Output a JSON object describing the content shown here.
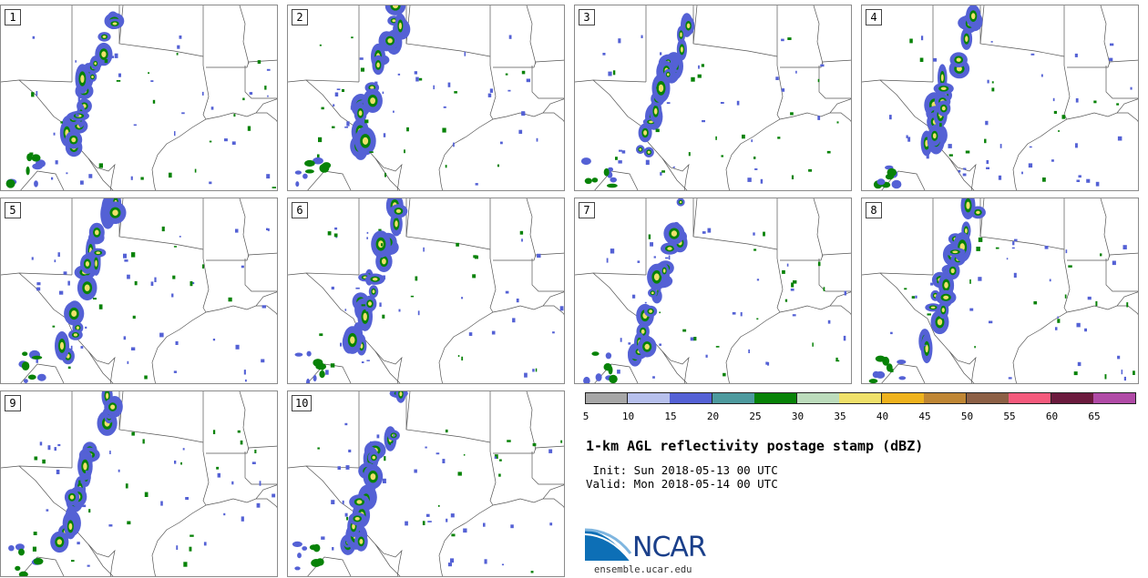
{
  "panels": [
    {
      "label": "1"
    },
    {
      "label": "2"
    },
    {
      "label": "3"
    },
    {
      "label": "4"
    },
    {
      "label": "5"
    },
    {
      "label": "6"
    },
    {
      "label": "7"
    },
    {
      "label": "8"
    },
    {
      "label": "9"
    },
    {
      "label": "10"
    }
  ],
  "colorbar": {
    "ticks": [
      "5",
      "10",
      "15",
      "20",
      "25",
      "30",
      "35",
      "40",
      "45",
      "50",
      "55",
      "60",
      "65"
    ],
    "colors": [
      "#a6a6a6",
      "#b7c0ec",
      "#5461d5",
      "#4d9a9e",
      "#078207",
      "#bcdcbc",
      "#efe06a",
      "#eeb21d",
      "#bf8634",
      "#8c5f45",
      "#f45a7c",
      "#6b1a3d",
      "#b04aa6"
    ]
  },
  "title": "1-km AGL reflectivity postage stamp (dBZ)",
  "init_line": " Init: Sun 2018-05-13 00 UTC",
  "valid_line": "Valid: Mon 2018-05-14 00 UTC",
  "logo": {
    "name": "NCAR",
    "url": "ensemble.ucar.edu"
  }
}
